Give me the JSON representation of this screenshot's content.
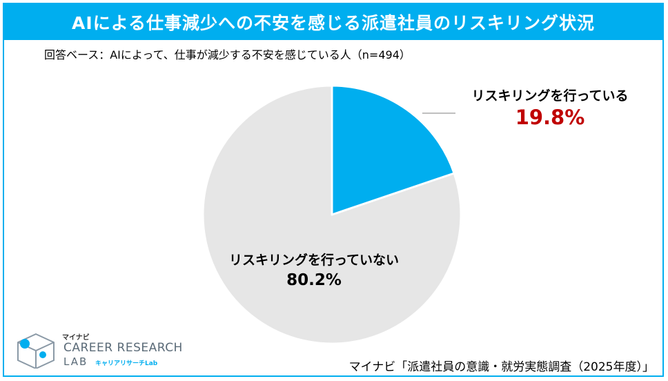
{
  "title": "AIによる仕事減少への不安を感じる派遣社員のリスキリング状況",
  "subtitle": "回答ベース：AIによって、仕事が減少する不安を感じている人（n=494）",
  "source": "マイナビ「派遣社員の意識・就労実態調査（2025年度）」",
  "logo": {
    "brand": "マイナビ",
    "line1": "CAREER RESEARCH",
    "line2": "LAB",
    "sub": "キャリアリサーチLab"
  },
  "colors": {
    "accent": "#00aeef",
    "slice_yes": "#00aeef",
    "slice_no": "#e6e6e6",
    "highlight": "#c00000"
  },
  "chart_data": {
    "type": "pie",
    "title": "AIによる仕事減少への不安を感じる派遣社員のリスキリング状況",
    "slices": [
      {
        "label": "リスキリングを行っている",
        "value": 19.8,
        "display": "19.8%"
      },
      {
        "label": "リスキリングを行っていない",
        "value": 80.2,
        "display": "80.2%"
      }
    ]
  }
}
